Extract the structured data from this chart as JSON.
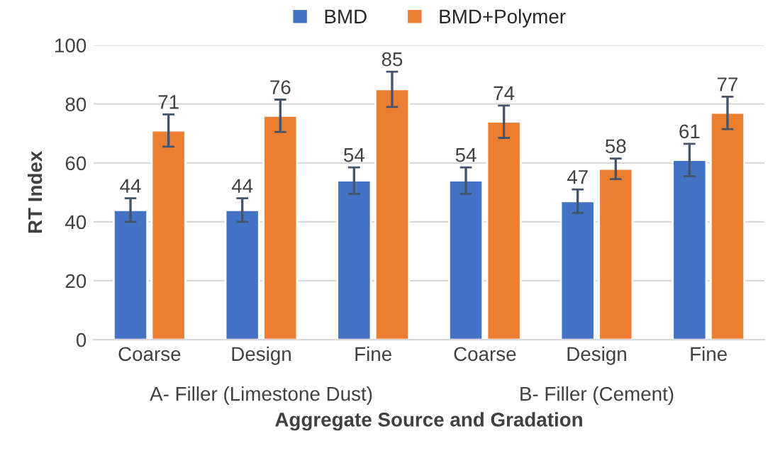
{
  "chart_data": {
    "type": "bar",
    "xlabel": "Aggregate Source and Gradation",
    "ylabel": "RT Index",
    "categories": [
      "Coarse",
      "Design",
      "Fine",
      "Coarse",
      "Design",
      "Fine"
    ],
    "series": [
      {
        "name": "BMD",
        "color": "#4472c4",
        "values": [
          44,
          44,
          54,
          54,
          47,
          61
        ],
        "errors": [
          4,
          4,
          4.5,
          4.5,
          4,
          5.5
        ]
      },
      {
        "name": "BMD+Polymer",
        "color": "#ed7d31",
        "values": [
          71,
          76,
          85,
          74,
          58,
          77
        ],
        "errors": [
          5.5,
          5.5,
          6,
          5.5,
          3.5,
          5.5
        ]
      }
    ],
    "annotations": [
      "A- Filler (Limestone Dust)",
      "B- Filler (Cement)"
    ],
    "ylim": [
      0,
      100
    ],
    "yticks": [
      0,
      20,
      40,
      60,
      80,
      100
    ],
    "grid": "y",
    "legend": "top",
    "data_labels": true
  }
}
